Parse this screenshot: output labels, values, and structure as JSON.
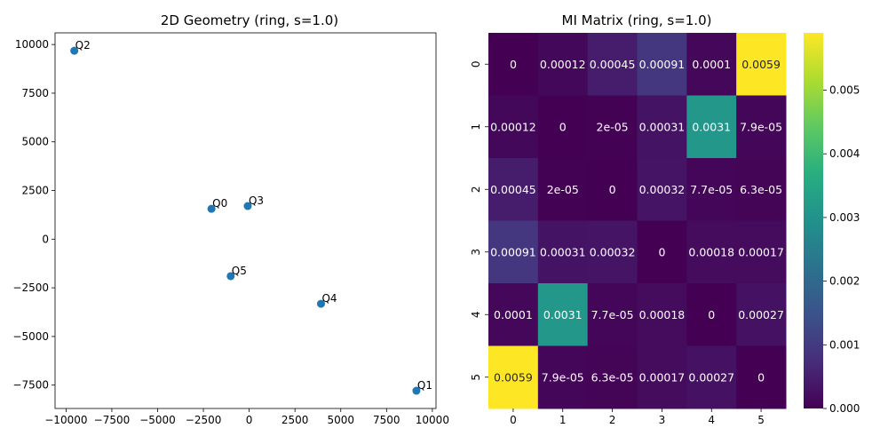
{
  "chart_data": [
    {
      "type": "scatter",
      "title": "2D Geometry (ring, s=1.0)",
      "xlim": [
        -10600,
        10200
      ],
      "ylim": [
        -8700,
        10600
      ],
      "xticks": [
        -10000,
        -7500,
        -5000,
        -2500,
        0,
        2500,
        5000,
        7500,
        10000
      ],
      "xtick_labels": [
        "−10000",
        "−7500",
        "−5000",
        "−2500",
        "0",
        "2500",
        "5000",
        "7500",
        "10000"
      ],
      "yticks": [
        10000,
        7500,
        5000,
        2500,
        0,
        -2500,
        -5000,
        -7500
      ],
      "ytick_labels": [
        "10000",
        "7500",
        "5000",
        "2500",
        "0",
        "−2500",
        "−5000",
        "−7500"
      ],
      "points": [
        {
          "label": "Q0",
          "x": -2060,
          "y": 1560
        },
        {
          "label": "Q1",
          "x": 9130,
          "y": -7790
        },
        {
          "label": "Q2",
          "x": -9550,
          "y": 9680
        },
        {
          "label": "Q3",
          "x": -80,
          "y": 1700
        },
        {
          "label": "Q4",
          "x": 3920,
          "y": -3320
        },
        {
          "label": "Q5",
          "x": -1010,
          "y": -1900
        }
      ],
      "marker_color": "#1f77b4"
    },
    {
      "type": "heatmap",
      "title": "MI Matrix (ring, s=1.0)",
      "row_labels": [
        "0",
        "1",
        "2",
        "3",
        "4",
        "5"
      ],
      "col_labels": [
        "0",
        "1",
        "2",
        "3",
        "4",
        "5"
      ],
      "values": [
        [
          0,
          0.00012,
          0.00045,
          0.00091,
          0.0001,
          0.0059
        ],
        [
          0.00012,
          0,
          2e-05,
          0.00031,
          0.0031,
          7.9e-05
        ],
        [
          0.00045,
          2e-05,
          0,
          0.00032,
          7.7e-05,
          6.3e-05
        ],
        [
          0.00091,
          0.00031,
          0.00032,
          0,
          0.00018,
          0.00017
        ],
        [
          0.0001,
          0.0031,
          7.7e-05,
          0.00018,
          0,
          0.00027
        ],
        [
          0.0059,
          7.9e-05,
          6.3e-05,
          0.00017,
          0.00027,
          0
        ]
      ],
      "cell_labels": [
        [
          "0",
          "0.00012",
          "0.00045",
          "0.00091",
          "0.0001",
          "0.0059"
        ],
        [
          "0.00012",
          "0",
          "2e-05",
          "0.00031",
          "0.0031",
          "7.9e-05"
        ],
        [
          "0.00045",
          "2e-05",
          "0",
          "0.00032",
          "7.7e-05",
          "6.3e-05"
        ],
        [
          "0.00091",
          "0.00031",
          "0.00032",
          "0",
          "0.00018",
          "0.00017"
        ],
        [
          "0.0001",
          "0.0031",
          "7.7e-05",
          "0.00018",
          "0",
          "0.00027"
        ],
        [
          "0.0059",
          "7.9e-05",
          "6.3e-05",
          "0.00017",
          "0.00027",
          "0"
        ]
      ],
      "colormap": "viridis",
      "vmin": 0,
      "vmax": 0.0059,
      "colorbar_ticks": [
        0,
        0.001,
        0.002,
        0.003,
        0.004,
        0.005
      ],
      "colorbar_tick_labels": [
        "0.000",
        "0.001",
        "0.002",
        "0.003",
        "0.004",
        "0.005"
      ]
    }
  ]
}
